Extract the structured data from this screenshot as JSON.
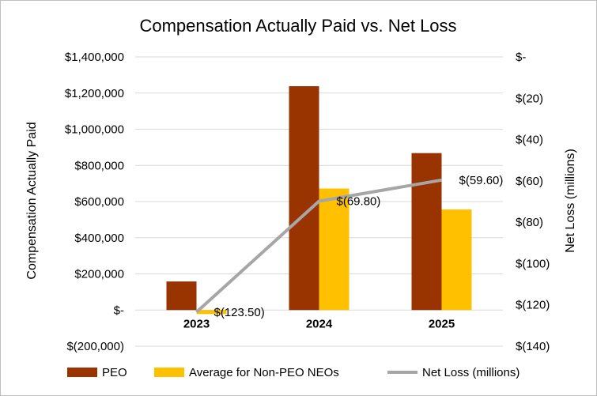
{
  "chart_data": {
    "type": "bar",
    "title": "Compensation Actually Paid vs. Net Loss",
    "categories": [
      "2023",
      "2024",
      "2025"
    ],
    "series": [
      {
        "name": "PEO",
        "type": "bar",
        "axis": "left",
        "values": [
          158000,
          1238000,
          868000
        ],
        "color": "#993300"
      },
      {
        "name": "Average for Non-PEO NEOs",
        "type": "bar",
        "axis": "left",
        "values": [
          -22000,
          672000,
          556000
        ],
        "color": "#FFC000"
      },
      {
        "name": "Net Loss (millions)",
        "type": "line",
        "axis": "right",
        "values": [
          -123.5,
          -69.8,
          -59.6
        ],
        "color": "#A6A6A6"
      }
    ],
    "data_labels": [
      "$(123.50)",
      "$(69.80)",
      "$(59.60)"
    ],
    "ylabel": "Compensation Actually Paid",
    "ylabel_right": "Net Loss (millions)",
    "ylim": [
      -200000,
      1400000
    ],
    "ylim_right": [
      -140,
      0
    ],
    "yticks": [
      1400000,
      1200000,
      1000000,
      800000,
      600000,
      400000,
      200000,
      0,
      -200000
    ],
    "yticklabels": [
      "$1,400,000",
      "$1,200,000",
      "$1,000,000",
      "$800,000",
      "$600,000",
      "$400,000",
      "$200,000",
      "$-",
      "$(200,000)"
    ],
    "yticks_right": [
      0,
      -20,
      -40,
      -60,
      -80,
      -100,
      -120,
      -140
    ],
    "yticklabels_right": [
      "$-",
      "$(20)",
      "$(40)",
      "$(60)",
      "$(80)",
      "$(100)",
      "$(120)",
      "$(140)"
    ],
    "grid": true,
    "legend_position": "bottom"
  }
}
